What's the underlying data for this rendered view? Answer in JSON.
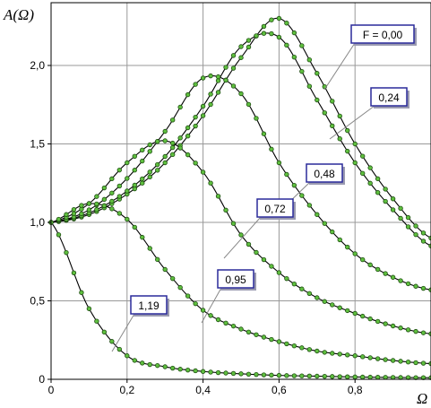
{
  "chart_data": {
    "type": "line",
    "ylabel": "A(Ω)",
    "xlabel": "Ω",
    "xlim": [
      0,
      1.0
    ],
    "ylim": [
      0,
      2.4
    ],
    "xticks": [
      0,
      0.2,
      0.4,
      0.6,
      0.8
    ],
    "xtick_labels": [
      "0",
      "0,2",
      "0,4",
      "0,6",
      "0,8"
    ],
    "yticks": [
      0,
      0.5,
      1.0,
      1.5,
      2.0
    ],
    "ytick_labels": [
      "0",
      "0,5",
      "1,0",
      "1,5",
      "2,0"
    ],
    "grid": true,
    "x": [
      0,
      0.1,
      0.2,
      0.3,
      0.4,
      0.5,
      0.6,
      0.7,
      0.8,
      0.9,
      1.0
    ],
    "series": [
      {
        "name": "F = 0,00",
        "values": [
          1.0,
          1.05,
          1.18,
          1.38,
          1.68,
          2.05,
          2.3,
          1.95,
          1.5,
          1.15,
          0.9
        ]
      },
      {
        "name": "0,24",
        "values": [
          1.0,
          1.06,
          1.2,
          1.42,
          1.74,
          2.12,
          2.18,
          1.78,
          1.38,
          1.08,
          0.85
        ]
      },
      {
        "name": "0,48",
        "values": [
          1.0,
          1.08,
          1.28,
          1.58,
          1.92,
          1.82,
          1.38,
          1.05,
          0.8,
          0.65,
          0.57
        ]
      },
      {
        "name": "0,72",
        "values": [
          1.0,
          1.12,
          1.38,
          1.52,
          1.32,
          0.92,
          0.68,
          0.52,
          0.42,
          0.34,
          0.29
        ]
      },
      {
        "name": "0,95",
        "values": [
          1.0,
          1.12,
          1.02,
          0.7,
          0.44,
          0.32,
          0.24,
          0.18,
          0.15,
          0.12,
          0.1
        ]
      },
      {
        "name": "1,19",
        "values": [
          1.0,
          0.45,
          0.15,
          0.08,
          0.05,
          0.035,
          0.025,
          0.02,
          0.015,
          0.012,
          0.01
        ]
      }
    ],
    "callouts": [
      {
        "text": "F = 0,00",
        "series": 0
      },
      {
        "text": "0,24",
        "series": 1
      },
      {
        "text": "0,48",
        "series": 2
      },
      {
        "text": "0,72",
        "series": 3
      },
      {
        "text": "0,95",
        "series": 4
      },
      {
        "text": "1,19",
        "series": 5
      }
    ],
    "colors": {
      "line": "#000000",
      "marker_fill": "#5fbf3f",
      "marker_stroke": "#1f4f12",
      "grid": "#999999",
      "callout_border": "#2a2a9a",
      "callout_shadow": "#9a9ab0"
    }
  }
}
